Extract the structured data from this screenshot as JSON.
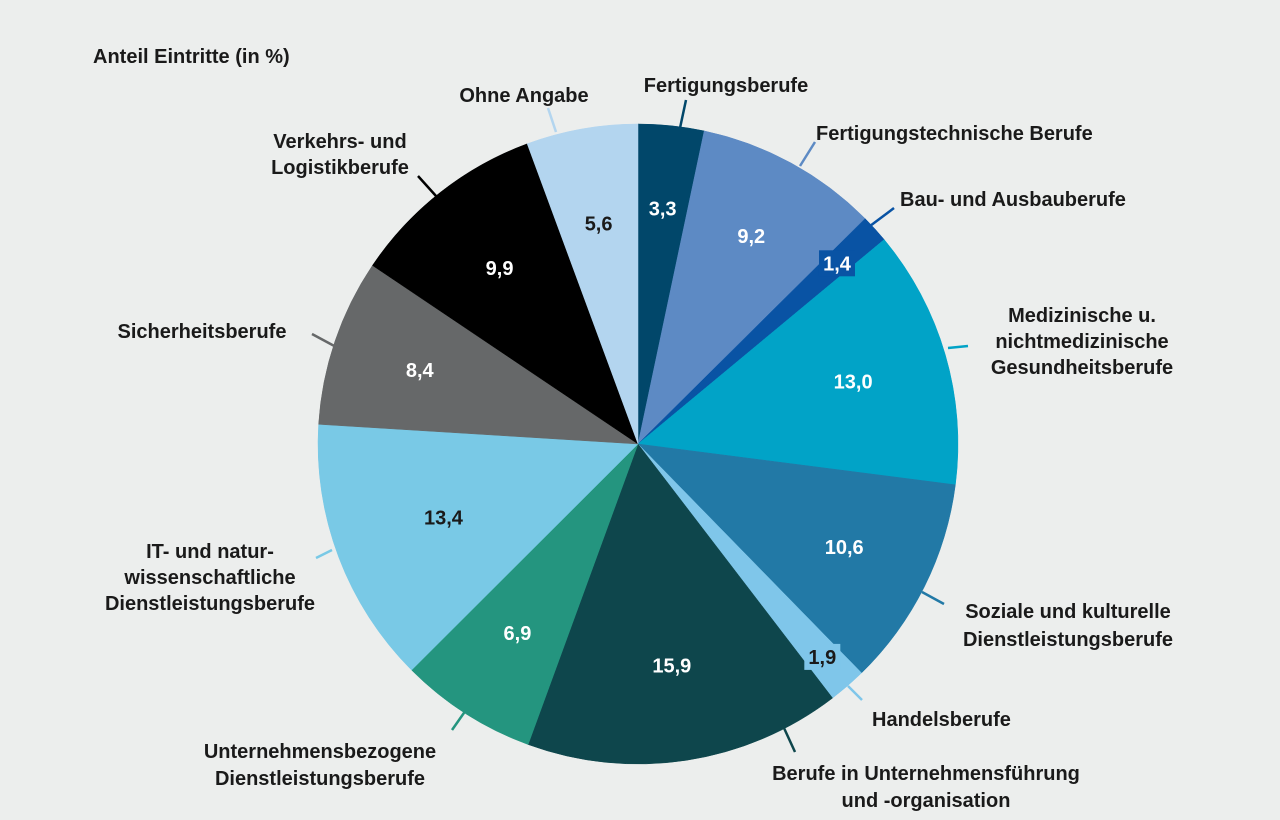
{
  "chart_data": {
    "type": "pie",
    "title": "Anteil Eintritte (in %)",
    "start_angle_deg": 0,
    "direction": "clockwise",
    "slices": [
      {
        "label": "Fertigungsberufe",
        "value": 3.3,
        "value_label": "3,3",
        "color": "#01476a",
        "text_color": "#ffffff"
      },
      {
        "label": "Fertigungstechnische Berufe",
        "value": 9.2,
        "value_label": "9,2",
        "color": "#5d8ac4",
        "text_color": "#ffffff"
      },
      {
        "label": "Bau- und Ausbauberufe",
        "value": 1.4,
        "value_label": "1,4",
        "color": "#0953a4",
        "text_color": "#ffffff"
      },
      {
        "label": "Medizinische u. nichtmedizinische Gesundheitsberufe",
        "value": 13.0,
        "value_label": "13,0",
        "color": "#01a3c7",
        "text_color": "#ffffff"
      },
      {
        "label": "Soziale und kulturelle Dienstleistungsberufe",
        "value": 10.6,
        "value_label": "10,6",
        "color": "#2279a6",
        "text_color": "#ffffff"
      },
      {
        "label": "Handelsberufe",
        "value": 1.9,
        "value_label": "1,9",
        "color": "#7fc6ea",
        "text_color": "#1a1a1a"
      },
      {
        "label": "Berufe in Unternehmensführung und -organisation",
        "value": 15.9,
        "value_label": "15,9",
        "color": "#0e464c",
        "text_color": "#ffffff"
      },
      {
        "label": "Unternehmensbezogene Dienstleistungsberufe",
        "value": 6.9,
        "value_label": "6,9",
        "color": "#24957f",
        "text_color": "#ffffff"
      },
      {
        "label": "IT- und naturwissenschaftliche Dienstleistungsberufe",
        "value": 13.4,
        "value_label": "13,4",
        "color": "#79c9e6",
        "text_color": "#1a1a1a"
      },
      {
        "label": "Sicherheitsberufe",
        "value": 8.4,
        "value_label": "8,4",
        "color": "#666869",
        "text_color": "#ffffff"
      },
      {
        "label": "Verkehrs- und Logistikberufe",
        "value": 9.9,
        "value_label": "9,9",
        "color": "#000000",
        "text_color": "#ffffff"
      },
      {
        "label": "Ohne Angabe",
        "value": 5.6,
        "value_label": "5,6",
        "color": "#b3d5ef",
        "text_color": "#1a1a1a"
      }
    ]
  }
}
